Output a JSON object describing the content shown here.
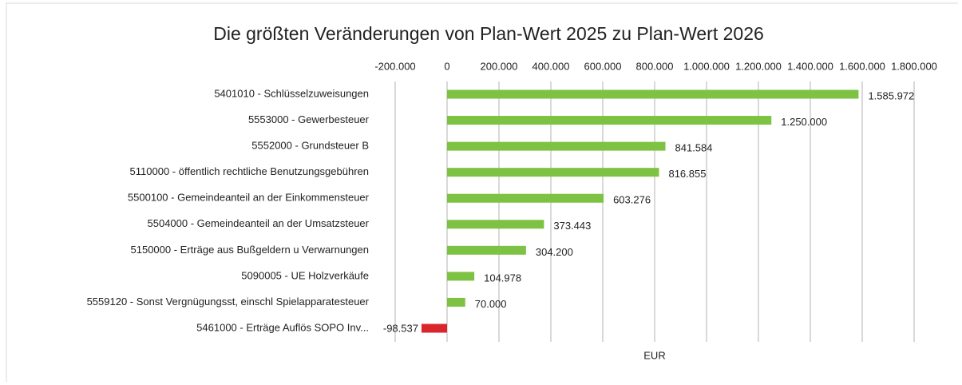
{
  "chart_data": {
    "type": "hbar",
    "title": "Die größten Veränderungen von Plan-Wert 2025 zu Plan-Wert 2026",
    "x_label": "EUR",
    "categories": [
      "5401010 - Schlüsselzuweisungen",
      "5553000 - Gewerbesteuer",
      "5552000 - Grundsteuer B",
      "5110000 - öffentlich rechtliche Benutzungsgebühren",
      "5500100 - Gemeindeanteil an der Einkommensteuer",
      "5504000 - Gemeindeanteil an der Umsatzsteuer",
      "5150000 - Erträge aus Bußgeldern u Verwarnungen",
      "5090005 - UE Holzverkäufe",
      "5559120 - Sonst Vergnügungsst, einschl Spielapparatesteuer",
      "5461000 - Erträge Auflös SOPO Inv..."
    ],
    "values": [
      1585972,
      1250000,
      841584,
      816855,
      603276,
      373443,
      304200,
      104978,
      70000,
      -98537
    ],
    "value_labels": [
      "1.585.972",
      "1.250.000",
      "841.584",
      "816.855",
      "603.276",
      "373.443",
      "304.200",
      "104.978",
      "70.000",
      "-98.537"
    ],
    "color": "#7dc242",
    "negative_color": "#d9262c",
    "xlim": [
      -200000,
      1800000
    ],
    "xticks": [
      {
        "value": -200000,
        "label": "-200.000"
      },
      0,
      {
        "value": 200000,
        "label": "200.000"
      },
      {
        "value": 400000,
        "label": "400.000"
      },
      {
        "value": 600000,
        "label": "600.000"
      },
      {
        "value": 800000,
        "label": "800.000"
      },
      {
        "value": 1000000,
        "label": "1.000.000"
      },
      {
        "value": 1200000,
        "label": "1.200.000"
      },
      {
        "value": 1400000,
        "label": "1.400.000"
      },
      {
        "value": 1600000,
        "label": "1.600.000"
      },
      {
        "value": 1800000,
        "label": "1.800.000"
      }
    ],
    "grid": true
  }
}
